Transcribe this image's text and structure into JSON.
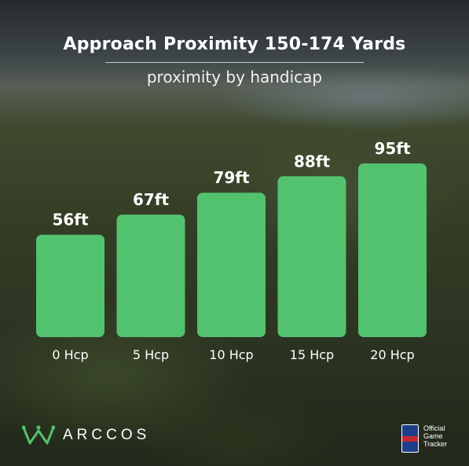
{
  "chart_data": {
    "type": "bar",
    "title": "Approach Proximity 150-174 Yards",
    "subtitle": "proximity by handicap",
    "categories": [
      "0 Hcp",
      "5 Hcp",
      "10 Hcp",
      "15 Hcp",
      "20 Hcp"
    ],
    "values": [
      56,
      67,
      79,
      88,
      95
    ],
    "data_labels": [
      "56ft",
      "67ft",
      "79ft",
      "88ft",
      "95ft"
    ],
    "xlabel": "",
    "ylabel": "",
    "ylim": [
      0,
      95
    ],
    "grid": false,
    "bar_color": "#53c26f"
  },
  "brand": {
    "name": "ARCCOS",
    "logo_icon": "crown-w-icon",
    "accent": "#53c26f"
  },
  "partner": {
    "badge_icon": "pga-tour-shield-icon",
    "text_lines": [
      "Official",
      "Game",
      "Tracker"
    ]
  }
}
